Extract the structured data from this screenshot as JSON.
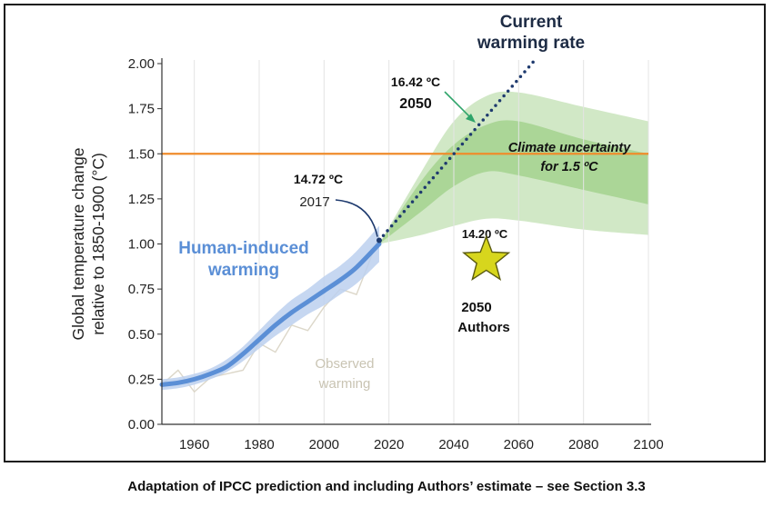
{
  "caption": "Adaptation of IPCC prediction and including Authors’ estimate – see Section 3.3",
  "chart_data": {
    "type": "line",
    "ylabel": "Global temperature change relative to 1850-1900 (°C)",
    "xlabel": "",
    "xlim": [
      1950,
      2100
    ],
    "ylim": [
      0,
      2
    ],
    "x_ticks": [
      "1960",
      "1980",
      "2000",
      "2020",
      "2040",
      "2060",
      "2080",
      "2100"
    ],
    "y_ticks": [
      "0.00",
      "0.25",
      "0.50",
      "0.75",
      "1.00",
      "1.25",
      "1.50",
      "1.75",
      "2.00"
    ],
    "grid": "vertical",
    "series": [
      {
        "name": "Human-induced warming",
        "color": "#5b8fd6",
        "x": [
          1950,
          1955,
          1960,
          1965,
          1970,
          1975,
          1980,
          1985,
          1990,
          1995,
          2000,
          2005,
          2010,
          2017
        ],
        "y": [
          0.22,
          0.23,
          0.25,
          0.28,
          0.32,
          0.39,
          0.47,
          0.55,
          0.62,
          0.68,
          0.74,
          0.8,
          0.87,
          1.0
        ],
        "band_low": [
          0.19,
          0.2,
          0.22,
          0.25,
          0.29,
          0.35,
          0.42,
          0.49,
          0.55,
          0.61,
          0.66,
          0.72,
          0.78,
          0.9
        ],
        "band_high": [
          0.25,
          0.26,
          0.28,
          0.31,
          0.36,
          0.43,
          0.52,
          0.61,
          0.69,
          0.75,
          0.82,
          0.88,
          0.96,
          1.1
        ]
      },
      {
        "name": "Current warming rate",
        "color": "#1e3a6e",
        "x": [
          2017,
          2065
        ],
        "y": [
          1.02,
          2.02
        ]
      },
      {
        "name": "Observed warming",
        "color": "#d8d3c3",
        "x": [
          1950,
          1955,
          1960,
          1965,
          1970,
          1975,
          1980,
          1985,
          1990,
          1995,
          2000,
          2005,
          2010,
          2015,
          2017
        ],
        "y": [
          0.22,
          0.3,
          0.18,
          0.26,
          0.28,
          0.3,
          0.45,
          0.4,
          0.55,
          0.52,
          0.65,
          0.75,
          0.72,
          0.95,
          1.05
        ]
      }
    ],
    "projection_bands": [
      {
        "color": "#cfe7c3",
        "x": [
          2017,
          2030,
          2040,
          2050,
          2060,
          2080,
          2100
        ],
        "low": [
          1.0,
          1.05,
          1.1,
          1.14,
          1.13,
          1.08,
          1.05
        ],
        "high": [
          1.0,
          1.4,
          1.68,
          1.82,
          1.84,
          1.76,
          1.68
        ]
      },
      {
        "color": "#a9d595",
        "x": [
          2017,
          2030,
          2040,
          2050,
          2060,
          2080,
          2100
        ],
        "low": [
          1.0,
          1.18,
          1.32,
          1.4,
          1.38,
          1.3,
          1.22
        ],
        "high": [
          1.0,
          1.35,
          1.55,
          1.66,
          1.68,
          1.58,
          1.5
        ]
      }
    ],
    "threshold": {
      "y": 1.5,
      "color": "#ef8c2b"
    },
    "points": [
      {
        "name": "2017",
        "x": 2017,
        "y": 1.02
      },
      {
        "name": "Authors",
        "x": 2050,
        "y": 0.91,
        "color": "#d7d61d"
      }
    ],
    "annotations": {
      "current_rate_1": "Current",
      "current_rate_2": "warming rate",
      "val_2050_temp": "16.42 ºC",
      "val_2050_year": "2050",
      "climate_unc_1": "Climate uncertainty",
      "climate_unc_2": "for 1.5 ºC",
      "val_2017_temp": "14.72 ºC",
      "val_2017_year": "2017",
      "human_1": "Human-induced",
      "human_2": "warming",
      "observed_1": "Observed",
      "observed_2": "warming",
      "authors_temp": "14.20 ºC",
      "authors_year": "2050",
      "authors_label": "Authors"
    }
  }
}
